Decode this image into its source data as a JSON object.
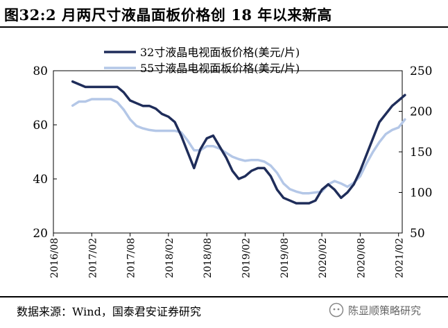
{
  "header": {
    "title": "图32:2 月两尺寸液晶面板价格创 18 年以来新高"
  },
  "footer": {
    "source": "数据来源：Wind，国泰君安证券研究",
    "watermark": "陈显顺策略研究"
  },
  "colors": {
    "series_32": "#1f2d5a",
    "series_55": "#b4c7e7"
  },
  "chart_data": {
    "type": "line",
    "x_ticks": [
      "2016/08",
      "2017/02",
      "2017/08",
      "2018/02",
      "2018/08",
      "2019/02",
      "2019/08",
      "2020/02",
      "2020/08",
      "2021/02"
    ],
    "y_left": {
      "range": [
        20,
        80
      ],
      "ticks": [
        "20",
        "40",
        "60",
        "80"
      ]
    },
    "y_right": {
      "range": [
        50,
        250
      ],
      "ticks": [
        "50",
        "100",
        "150",
        "200",
        "250"
      ]
    },
    "legend_position": "top-center",
    "series": [
      {
        "name": "32寸液晶电视面板价格(美元/片)",
        "axis": "left",
        "color": "#1f2d5a",
        "x": [
          "2016/11",
          "2016/12",
          "2017/01",
          "2017/02",
          "2017/03",
          "2017/04",
          "2017/05",
          "2017/06",
          "2017/07",
          "2017/08",
          "2017/09",
          "2017/10",
          "2017/11",
          "2017/12",
          "2018/01",
          "2018/02",
          "2018/03",
          "2018/04",
          "2018/05",
          "2018/06",
          "2018/07",
          "2018/08",
          "2018/09",
          "2018/10",
          "2018/11",
          "2018/12",
          "2019/01",
          "2019/02",
          "2019/03",
          "2019/04",
          "2019/05",
          "2019/06",
          "2019/07",
          "2019/08",
          "2019/09",
          "2019/10",
          "2019/11",
          "2019/12",
          "2020/01",
          "2020/02",
          "2020/03",
          "2020/04",
          "2020/05",
          "2020/06",
          "2020/07",
          "2020/08",
          "2020/09",
          "2020/10",
          "2020/11",
          "2020/12",
          "2021/01",
          "2021/02",
          "2021/03"
        ],
        "values": [
          76,
          75,
          74,
          74,
          74,
          74,
          74,
          74,
          72,
          69,
          68,
          67,
          67,
          66,
          64,
          63,
          61,
          56,
          50,
          44,
          51,
          55,
          56,
          52,
          48,
          43,
          40,
          41,
          43,
          44,
          44,
          41,
          36,
          33,
          32,
          31,
          31,
          31,
          32,
          36,
          38,
          36,
          33,
          35,
          38,
          43,
          49,
          55,
          61,
          64,
          67,
          69,
          71
        ]
      },
      {
        "name": "55寸液晶电视面板价格(美元/片)",
        "axis": "right",
        "color": "#b4c7e7",
        "x": [
          "2016/11",
          "2016/12",
          "2017/01",
          "2017/02",
          "2017/03",
          "2017/04",
          "2017/05",
          "2017/06",
          "2017/07",
          "2017/08",
          "2017/09",
          "2017/10",
          "2017/11",
          "2017/12",
          "2018/01",
          "2018/02",
          "2018/03",
          "2018/04",
          "2018/05",
          "2018/06",
          "2018/07",
          "2018/08",
          "2018/09",
          "2018/10",
          "2018/11",
          "2018/12",
          "2019/01",
          "2019/02",
          "2019/03",
          "2019/04",
          "2019/05",
          "2019/06",
          "2019/07",
          "2019/08",
          "2019/09",
          "2019/10",
          "2019/11",
          "2019/12",
          "2020/01",
          "2020/02",
          "2020/03",
          "2020/04",
          "2020/05",
          "2020/06",
          "2020/07",
          "2020/08",
          "2020/09",
          "2020/10",
          "2020/11",
          "2020/12",
          "2021/01",
          "2021/02",
          "2021/03"
        ],
        "values": [
          207,
          212,
          212,
          215,
          215,
          215,
          215,
          211,
          202,
          190,
          182,
          179,
          177,
          176,
          176,
          176,
          176,
          174,
          164,
          152,
          152,
          157,
          157,
          154,
          149,
          144,
          141,
          139,
          140,
          140,
          138,
          133,
          124,
          111,
          104,
          101,
          99,
          99,
          100,
          101,
          110,
          114,
          111,
          107,
          112,
          120,
          136,
          150,
          162,
          172,
          177,
          180,
          190
        ]
      }
    ]
  }
}
